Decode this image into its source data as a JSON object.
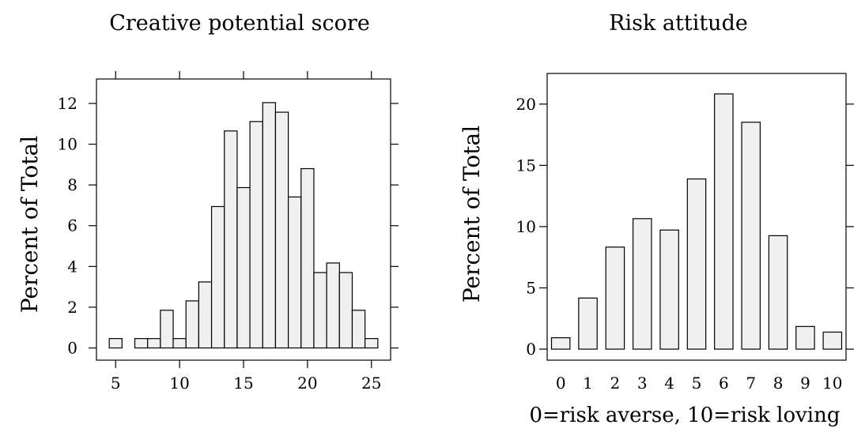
{
  "chart_data": [
    {
      "type": "bar",
      "title": "Creative potential score",
      "ylabel": "Percent of Total",
      "xlabel": "",
      "bin_width": 1,
      "x": [
        5,
        6,
        7,
        8,
        9,
        10,
        11,
        12,
        13,
        14,
        15,
        16,
        17,
        18,
        19,
        20,
        21,
        22,
        23,
        24,
        25
      ],
      "values": [
        0.46,
        0,
        0.46,
        0.46,
        1.85,
        0.46,
        2.31,
        3.24,
        6.94,
        10.65,
        7.87,
        11.11,
        12.04,
        11.57,
        7.41,
        8.8,
        3.7,
        4.17,
        3.7,
        1.85,
        0.46
      ],
      "xlim": [
        3.5,
        26.5
      ],
      "ylim": [
        -0.6,
        13.2
      ],
      "xticks": [
        "5",
        "10",
        "15",
        "20",
        "25"
      ],
      "yticks": [
        "0",
        "2",
        "4",
        "6",
        "8",
        "10",
        "12"
      ],
      "grid": false
    },
    {
      "type": "bar",
      "title": "Risk attitude",
      "ylabel": "Percent of Total",
      "xlabel": "0=risk averse, 10=risk loving",
      "categories": [
        "0",
        "1",
        "2",
        "3",
        "4",
        "5",
        "6",
        "7",
        "8",
        "9",
        "10"
      ],
      "values": [
        0.93,
        4.17,
        8.33,
        10.65,
        9.72,
        13.89,
        20.83,
        18.52,
        9.26,
        1.85,
        1.39
      ],
      "ylim": [
        -0.9,
        22.5
      ],
      "yticks": [
        "0",
        "5",
        "10",
        "15",
        "20"
      ],
      "grid": false
    }
  ]
}
